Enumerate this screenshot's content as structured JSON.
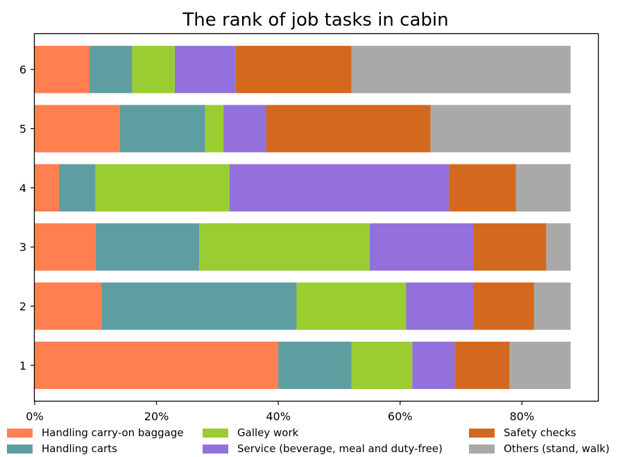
{
  "chart_data": {
    "type": "bar",
    "orientation": "horizontal",
    "stacked": true,
    "title": "The rank of job tasks in cabin",
    "xlabel": "",
    "ylabel": "",
    "categories": [
      "1",
      "2",
      "3",
      "4",
      "5",
      "6"
    ],
    "xlim": [
      0,
      92.5
    ],
    "xticks": [
      0,
      20,
      40,
      60,
      80
    ],
    "xtick_labels": [
      "0%",
      "20%",
      "40%",
      "60%",
      "80%"
    ],
    "grid": false,
    "legend_position": "bottom",
    "series": [
      {
        "name": "Handling carry-on baggage",
        "color": "#FF7F50",
        "values": [
          40,
          11,
          10,
          4,
          14,
          9
        ]
      },
      {
        "name": "Handling carts",
        "color": "#5F9EA0",
        "values": [
          12,
          32,
          17,
          6,
          14,
          7
        ]
      },
      {
        "name": "Galley work",
        "color": "#9ACD32",
        "values": [
          10,
          18,
          28,
          22,
          3,
          7
        ]
      },
      {
        "name": "Service (beverage, meal and duty-free)",
        "color": "#9370DB",
        "values": [
          7,
          11,
          17,
          36,
          7,
          10
        ]
      },
      {
        "name": "Safety checks",
        "color": "#D2691E",
        "values": [
          9,
          10,
          12,
          11,
          27,
          19
        ]
      },
      {
        "name": "Others (stand, walk)",
        "color": "#A9A9A9",
        "values": [
          10,
          6,
          4,
          9,
          23,
          36
        ]
      }
    ]
  }
}
